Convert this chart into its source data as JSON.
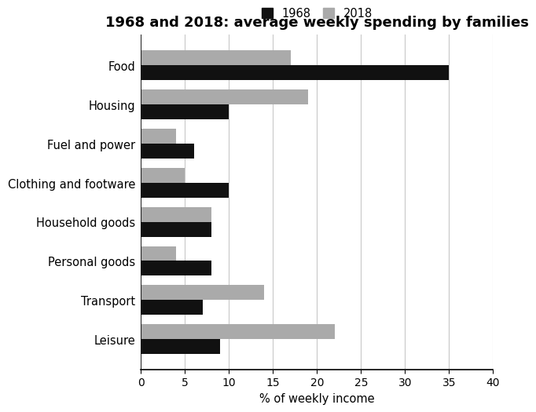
{
  "title": "1968 and 2018: average weekly spending by families",
  "categories": [
    "Food",
    "Housing",
    "Fuel and power",
    "Clothing and footware",
    "Household goods",
    "Personal goods",
    "Transport",
    "Leisure"
  ],
  "values_1968": [
    35,
    10,
    6,
    10,
    8,
    8,
    7,
    9
  ],
  "values_2018": [
    17,
    19,
    4,
    5,
    8,
    4,
    14,
    22
  ],
  "color_1968": "#111111",
  "color_2018": "#aaaaaa",
  "xlabel": "% of weekly income",
  "xlim": [
    0,
    40
  ],
  "xticks": [
    0,
    5,
    10,
    15,
    20,
    25,
    30,
    35,
    40
  ],
  "legend_labels": [
    "1968",
    "2018"
  ],
  "bar_height": 0.38,
  "background_color": "#ffffff",
  "title_fontsize": 13,
  "label_fontsize": 10.5,
  "tick_fontsize": 10
}
